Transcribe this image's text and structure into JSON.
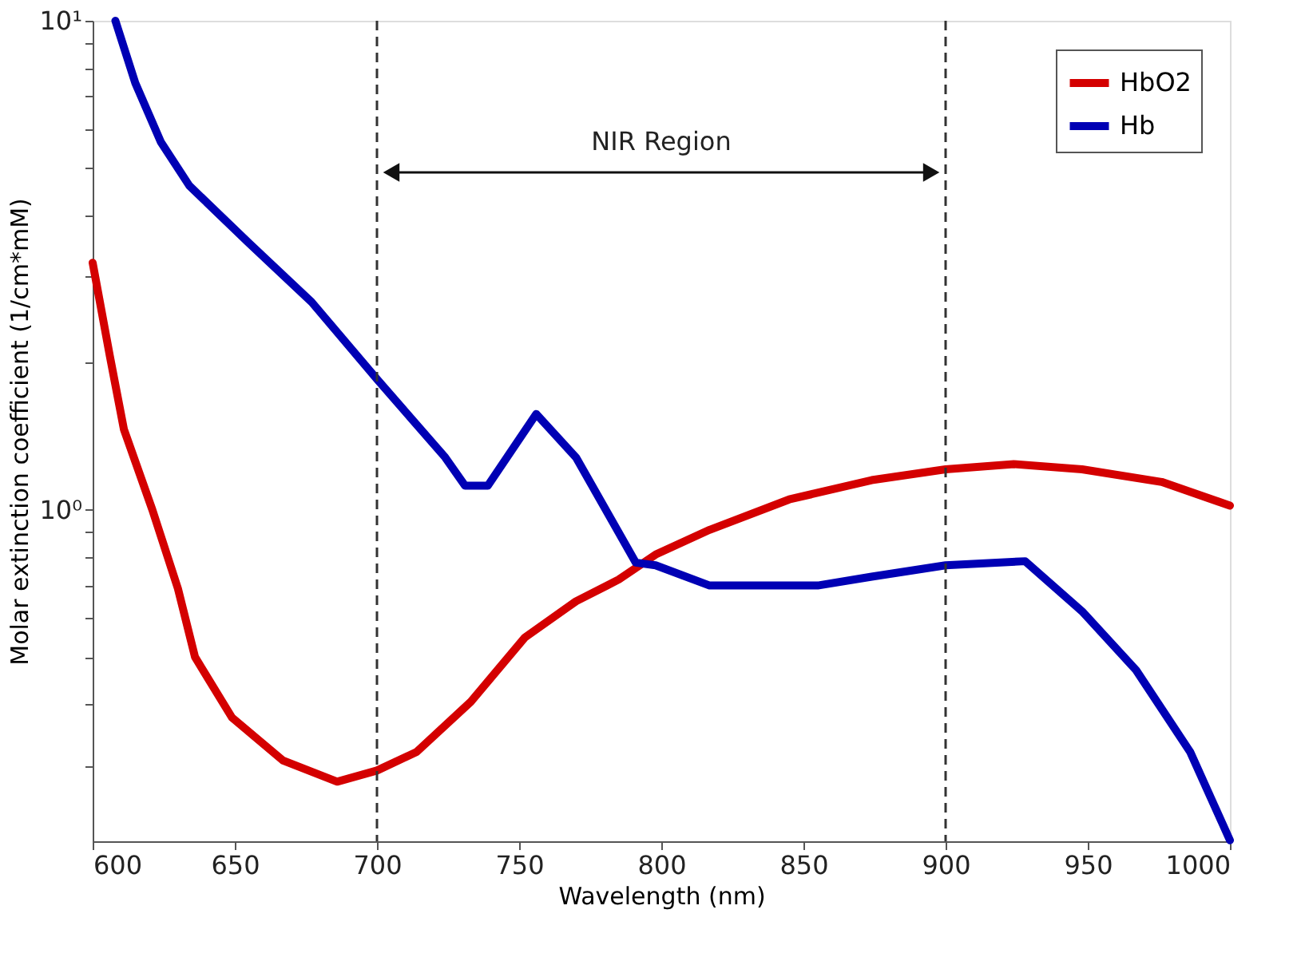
{
  "chart_data": {
    "type": "line",
    "xlabel": "Wavelength (nm)",
    "ylabel": "Molar extinction coefficient (1/cm*mM)",
    "log": "y",
    "grid": false,
    "legend": "top right",
    "line_style": "solid",
    "marker": "none",
    "xlim": [
      600,
      1000
    ],
    "xticks": [
      600,
      650,
      700,
      750,
      800,
      850,
      900,
      950,
      1000
    ],
    "ylim": [
      0.21,
      10
    ],
    "yticks": [
      {
        "value": 0.3,
        "label": null
      },
      {
        "value": 0.4,
        "label": null
      },
      {
        "value": 0.5,
        "label": null
      },
      {
        "value": 0.6,
        "label": null
      },
      {
        "value": 0.7,
        "label": null
      },
      {
        "value": 0.8,
        "label": null
      },
      {
        "value": 0.9,
        "label": null
      },
      {
        "value": 1,
        "label": "10⁰"
      },
      {
        "value": 2,
        "label": null
      },
      {
        "value": 3,
        "label": null
      },
      {
        "value": 4,
        "label": null
      },
      {
        "value": 5,
        "label": null
      },
      {
        "value": 6,
        "label": null
      },
      {
        "value": 7,
        "label": null
      },
      {
        "value": 8,
        "label": null
      },
      {
        "value": 9,
        "label": null
      },
      {
        "value": 10,
        "label": "10¹"
      }
    ],
    "series": [
      {
        "name": "HbO2",
        "color": "#d40000",
        "x": [
          600,
          606,
          611,
          621,
          630,
          636,
          649,
          667,
          686,
          700,
          714,
          733,
          752,
          770,
          785,
          798,
          817,
          845,
          874,
          900,
          924,
          948,
          976,
          1000
        ],
        "values": [
          3.2,
          2.07,
          1.46,
          1.0,
          0.69,
          0.5,
          0.376,
          0.307,
          0.278,
          0.293,
          0.32,
          0.405,
          0.548,
          0.65,
          0.72,
          0.81,
          0.91,
          1.05,
          1.15,
          1.21,
          1.24,
          1.21,
          1.14,
          1.02
        ]
      },
      {
        "name": "Hb",
        "color": "#0000b4",
        "x": [
          608,
          615,
          624,
          634,
          655,
          677,
          700,
          724,
          731,
          739,
          756,
          770,
          791,
          798,
          817,
          855,
          874,
          900,
          928,
          948,
          967,
          986,
          1000
        ],
        "values": [
          10.0,
          7.46,
          5.65,
          4.6,
          3.51,
          2.66,
          1.85,
          1.28,
          1.12,
          1.12,
          1.57,
          1.28,
          0.78,
          0.77,
          0.7,
          0.7,
          0.73,
          0.77,
          0.785,
          0.62,
          0.47,
          0.32,
          0.211
        ]
      }
    ],
    "ref_lines": [
      {
        "axis": "x",
        "value": 700,
        "color": "#333333",
        "line_style": "dashed"
      },
      {
        "axis": "x",
        "value": 900,
        "color": "#333333",
        "line_style": "dashed"
      }
    ],
    "annotations": [
      "NIR Region"
    ]
  }
}
